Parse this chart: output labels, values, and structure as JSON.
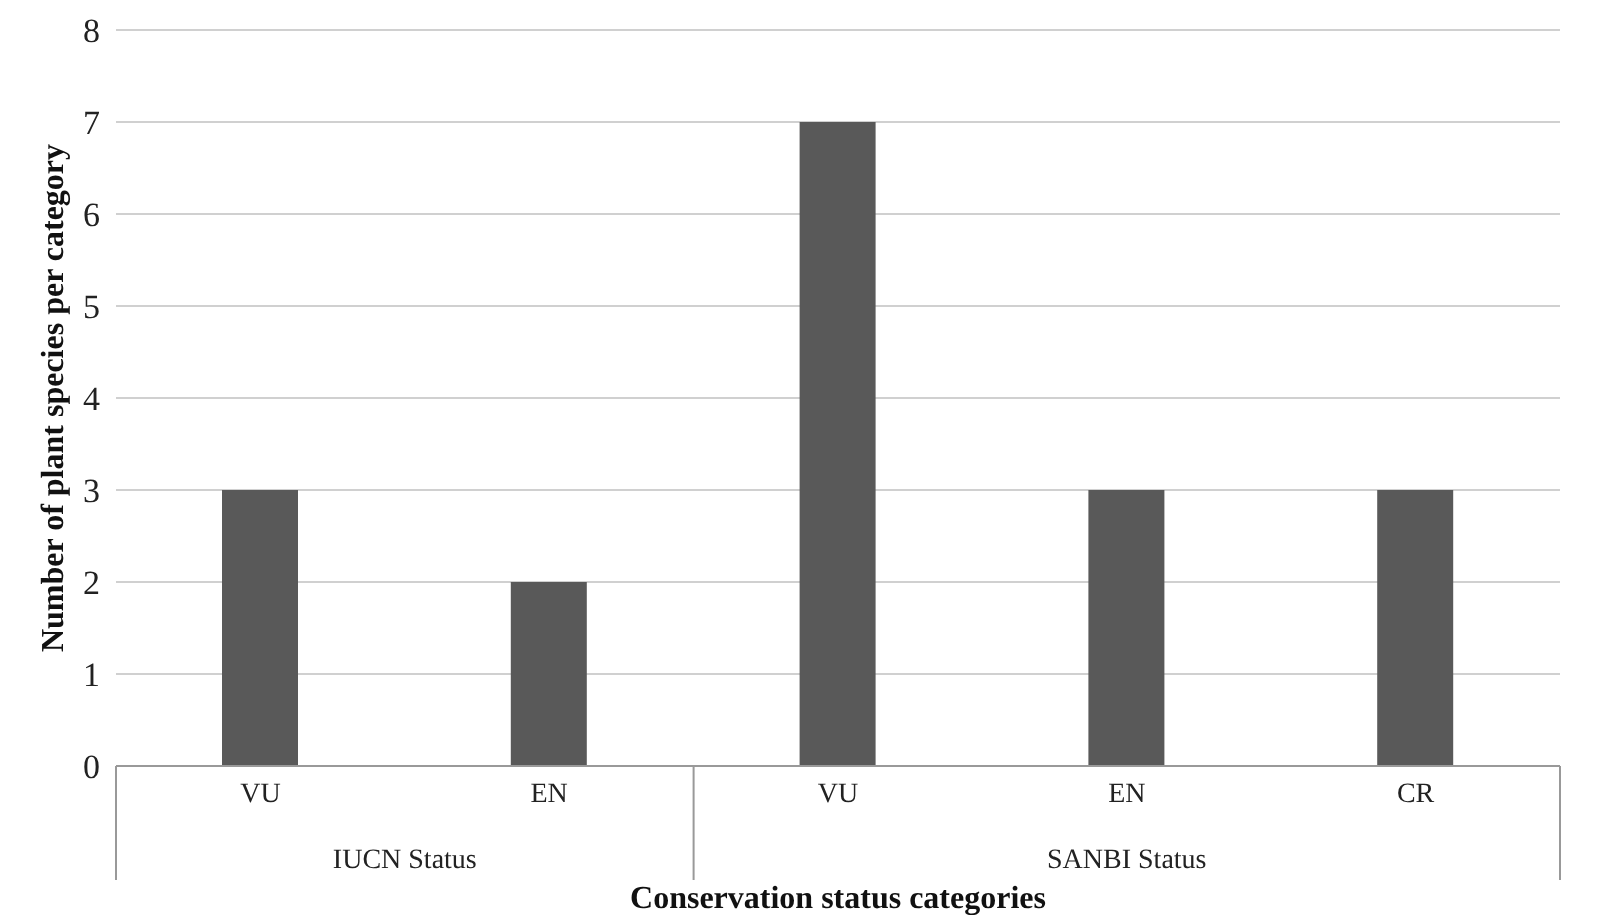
{
  "chart_data": {
    "type": "bar",
    "xlabel": "Conservation status categories",
    "ylabel": "Number of plant species per category",
    "categories": [
      "VU",
      "EN",
      "VU",
      "EN",
      "CR"
    ],
    "values": [
      3,
      2,
      7,
      3,
      3
    ],
    "color": "#595959",
    "ylim": [
      0,
      8
    ],
    "yticks": [
      0,
      1,
      2,
      3,
      4,
      5,
      6,
      7,
      8
    ],
    "grid": "y",
    "annotations": [
      "IUCN Status",
      "SANBI Status"
    ]
  }
}
